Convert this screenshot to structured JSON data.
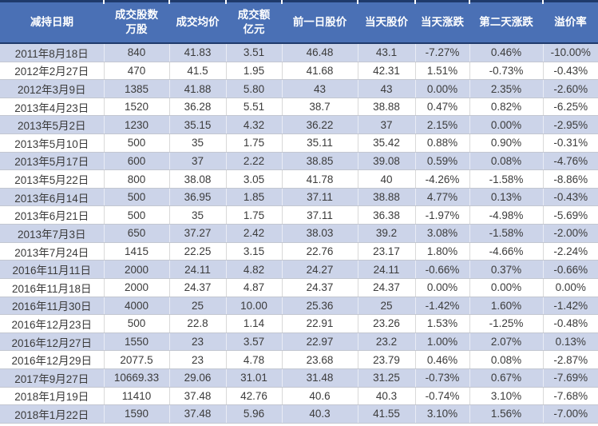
{
  "table": {
    "columns": [
      {
        "label": [
          "减持日期"
        ]
      },
      {
        "label": [
          "成交股数",
          "万股"
        ]
      },
      {
        "label": [
          "成交均价"
        ]
      },
      {
        "label": [
          "成交额",
          "亿元"
        ]
      },
      {
        "label": [
          "前一日股价"
        ]
      },
      {
        "label": [
          "当天股价"
        ]
      },
      {
        "label": [
          "当天涨跌"
        ]
      },
      {
        "label": [
          "第二天涨跌"
        ]
      },
      {
        "label": [
          "溢价率"
        ]
      }
    ],
    "rows": [
      [
        "2011年8月18日",
        "840",
        "41.83",
        "3.51",
        "46.48",
        "43.1",
        "-7.27%",
        "0.46%",
        "-10.00%"
      ],
      [
        "2012年2月27日",
        "470",
        "41.5",
        "1.95",
        "41.68",
        "42.31",
        "1.51%",
        "-0.73%",
        "-0.43%"
      ],
      [
        "2012年3月9日",
        "1385",
        "41.88",
        "5.80",
        "43",
        "43",
        "0.00%",
        "2.35%",
        "-2.60%"
      ],
      [
        "2013年4月23日",
        "1520",
        "36.28",
        "5.51",
        "38.7",
        "38.88",
        "0.47%",
        "0.82%",
        "-6.25%"
      ],
      [
        "2013年5月2日",
        "1230",
        "35.15",
        "4.32",
        "36.22",
        "37",
        "2.15%",
        "0.00%",
        "-2.95%"
      ],
      [
        "2013年5月10日",
        "500",
        "35",
        "1.75",
        "35.11",
        "35.42",
        "0.88%",
        "0.90%",
        "-0.31%"
      ],
      [
        "2013年5月17日",
        "600",
        "37",
        "2.22",
        "38.85",
        "39.08",
        "0.59%",
        "0.08%",
        "-4.76%"
      ],
      [
        "2013年5月22日",
        "800",
        "38.08",
        "3.05",
        "41.78",
        "40",
        "-4.26%",
        "-1.58%",
        "-8.86%"
      ],
      [
        "2013年6月14日",
        "500",
        "36.95",
        "1.85",
        "37.11",
        "38.88",
        "4.77%",
        "0.13%",
        "-0.43%"
      ],
      [
        "2013年6月21日",
        "500",
        "35",
        "1.75",
        "37.11",
        "36.38",
        "-1.97%",
        "-4.98%",
        "-5.69%"
      ],
      [
        "2013年7月3日",
        "650",
        "37.27",
        "2.42",
        "38.03",
        "39.2",
        "3.08%",
        "-1.58%",
        "-2.00%"
      ],
      [
        "2013年7月24日",
        "1415",
        "22.25",
        "3.15",
        "22.76",
        "23.17",
        "1.80%",
        "-4.66%",
        "-2.24%"
      ],
      [
        "2016年11月11日",
        "2000",
        "24.11",
        "4.82",
        "24.27",
        "24.11",
        "-0.66%",
        "0.37%",
        "-0.66%"
      ],
      [
        "2016年11月18日",
        "2000",
        "24.37",
        "4.87",
        "24.37",
        "24.37",
        "0.00%",
        "0.00%",
        "0.00%"
      ],
      [
        "2016年11月30日",
        "4000",
        "25",
        "10.00",
        "25.36",
        "25",
        "-1.42%",
        "1.60%",
        "-1.42%"
      ],
      [
        "2016年12月23日",
        "500",
        "22.8",
        "1.14",
        "22.91",
        "23.26",
        "1.53%",
        "-1.25%",
        "-0.48%"
      ],
      [
        "2016年12月27日",
        "1550",
        "23",
        "3.57",
        "22.97",
        "23.2",
        "1.00%",
        "2.07%",
        "0.13%"
      ],
      [
        "2016年12月29日",
        "2077.5",
        "23",
        "4.78",
        "23.68",
        "23.79",
        "0.46%",
        "0.08%",
        "-2.87%"
      ],
      [
        "2017年9月27日",
        "10669.33",
        "29.06",
        "31.01",
        "31.48",
        "31.25",
        "-0.73%",
        "0.67%",
        "-7.69%"
      ],
      [
        "2018年1月19日",
        "11410",
        "37.48",
        "42.76",
        "40.6",
        "40.3",
        "-0.74%",
        "3.10%",
        "-7.68%"
      ],
      [
        "2018年1月22日",
        "1590",
        "37.48",
        "5.96",
        "40.3",
        "41.55",
        "3.10%",
        "1.56%",
        "-7.00%"
      ]
    ]
  },
  "colors": {
    "header_bg": "#4a70b5",
    "header_text": "#ffffff",
    "header_border": "#1f3a6b",
    "band_row_bg": "#ccd4e9",
    "text_color": "#3b3b3b",
    "grid_line": "#c3c7d1"
  }
}
